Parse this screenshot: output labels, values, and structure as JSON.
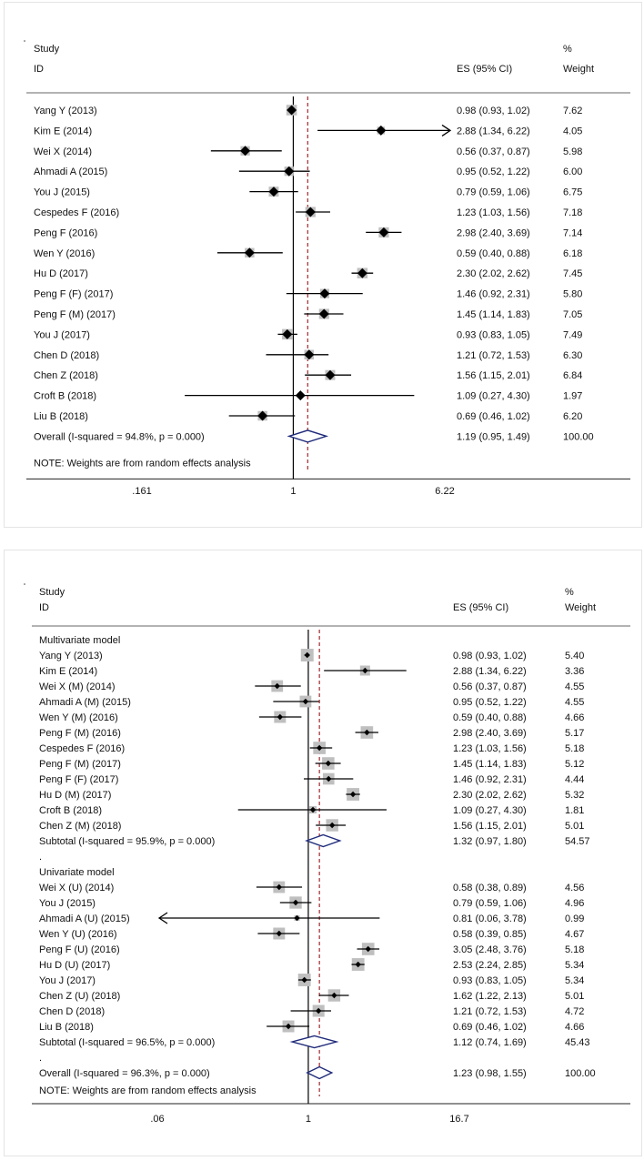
{
  "chart_data": [
    {
      "type": "forest",
      "header": {
        "col_study": "Study",
        "col_id": "ID",
        "col_es": "ES (95% CI)",
        "col_pct": "%",
        "col_weight": "Weight"
      },
      "tick_labels": [
        ".161",
        "1",
        "6.22"
      ],
      "xlim": [
        0.161,
        6.22
      ],
      "null_line": 1,
      "overall_line": 1.19,
      "note": "NOTE: Weights are from random effects analysis",
      "rows": [
        {
          "kind": "study",
          "label": "Yang Y (2013)",
          "es": 0.98,
          "lo": 0.93,
          "hi": 1.02,
          "ci_text": "0.98 (0.93, 1.02)",
          "weight": "7.62"
        },
        {
          "kind": "study",
          "label": "Kim E (2014)",
          "es": 2.88,
          "lo": 1.34,
          "hi": 6.22,
          "ci_text": "2.88 (1.34, 6.22)",
          "weight": "4.05",
          "arrow": "right"
        },
        {
          "kind": "study",
          "label": "Wei X (2014)",
          "es": 0.56,
          "lo": 0.37,
          "hi": 0.87,
          "ci_text": "0.56 (0.37, 0.87)",
          "weight": "5.98"
        },
        {
          "kind": "study",
          "label": "Ahmadi A (2015)",
          "es": 0.95,
          "lo": 0.52,
          "hi": 1.22,
          "ci_text": "0.95 (0.52, 1.22)",
          "weight": "6.00"
        },
        {
          "kind": "study",
          "label": "You J (2015)",
          "es": 0.79,
          "lo": 0.59,
          "hi": 1.06,
          "ci_text": "0.79 (0.59, 1.06)",
          "weight": "6.75"
        },
        {
          "kind": "study",
          "label": "Cespedes F (2016)",
          "es": 1.23,
          "lo": 1.03,
          "hi": 1.56,
          "ci_text": "1.23 (1.03, 1.56)",
          "weight": "7.18"
        },
        {
          "kind": "study",
          "label": "Peng F (2016)",
          "es": 2.98,
          "lo": 2.4,
          "hi": 3.69,
          "ci_text": "2.98 (2.40, 3.69)",
          "weight": "7.14"
        },
        {
          "kind": "study",
          "label": "Wen Y (2016)",
          "es": 0.59,
          "lo": 0.4,
          "hi": 0.88,
          "ci_text": "0.59 (0.40, 0.88)",
          "weight": "6.18"
        },
        {
          "kind": "study",
          "label": "Hu D (2017)",
          "es": 2.3,
          "lo": 2.02,
          "hi": 2.62,
          "ci_text": "2.30 (2.02, 2.62)",
          "weight": "7.45"
        },
        {
          "kind": "study",
          "label": "Peng F (F) (2017)",
          "es": 1.46,
          "lo": 0.92,
          "hi": 2.31,
          "ci_text": "1.46 (0.92, 2.31)",
          "weight": "5.80"
        },
        {
          "kind": "study",
          "label": "Peng F (M) (2017)",
          "es": 1.45,
          "lo": 1.14,
          "hi": 1.83,
          "ci_text": "1.45 (1.14, 1.83)",
          "weight": "7.05"
        },
        {
          "kind": "study",
          "label": "You J (2017)",
          "es": 0.93,
          "lo": 0.83,
          "hi": 1.05,
          "ci_text": "0.93 (0.83, 1.05)",
          "weight": "7.49"
        },
        {
          "kind": "study",
          "label": "Chen D (2018)",
          "es": 1.21,
          "lo": 0.72,
          "hi": 1.53,
          "ci_text": "1.21 (0.72, 1.53)",
          "weight": "6.30"
        },
        {
          "kind": "study",
          "label": "Chen Z (2018)",
          "es": 1.56,
          "lo": 1.15,
          "hi": 2.01,
          "ci_text": "1.56 (1.15, 2.01)",
          "weight": "6.84"
        },
        {
          "kind": "study",
          "label": "Croft B (2018)",
          "es": 1.09,
          "lo": 0.27,
          "hi": 4.3,
          "ci_text": "1.09 (0.27, 4.30)",
          "weight": "1.97"
        },
        {
          "kind": "study",
          "label": "Liu B (2018)",
          "es": 0.69,
          "lo": 0.46,
          "hi": 1.02,
          "ci_text": "0.69 (0.46, 1.02)",
          "weight": "6.20"
        },
        {
          "kind": "overall",
          "label": "Overall  (I-squared = 94.8%, p = 0.000)",
          "es": 1.19,
          "lo": 0.95,
          "hi": 1.49,
          "ci_text": "1.19 (0.95, 1.49)",
          "weight": "100.00"
        }
      ]
    },
    {
      "type": "forest",
      "header": {
        "col_study": "Study",
        "col_id": "ID",
        "col_es": "ES (95% CI)",
        "col_pct": "%",
        "col_weight": "Weight"
      },
      "tick_labels": [
        ".06",
        "1",
        "16.7"
      ],
      "xlim": [
        0.06,
        16.7
      ],
      "null_line": 1,
      "overall_line": 1.23,
      "note": "NOTE: Weights are from random effects analysis",
      "rows": [
        {
          "kind": "group",
          "label": "Multivariate model"
        },
        {
          "kind": "study",
          "label": "Yang Y (2013)",
          "es": 0.98,
          "lo": 0.93,
          "hi": 1.02,
          "ci_text": "0.98 (0.93, 1.02)",
          "weight": "5.40"
        },
        {
          "kind": "study",
          "label": "Kim E (2014)",
          "es": 2.88,
          "lo": 1.34,
          "hi": 6.22,
          "ci_text": "2.88 (1.34, 6.22)",
          "weight": "3.36"
        },
        {
          "kind": "study",
          "label": "Wei X (M) (2014)",
          "es": 0.56,
          "lo": 0.37,
          "hi": 0.87,
          "ci_text": "0.56 (0.37, 0.87)",
          "weight": "4.55"
        },
        {
          "kind": "study",
          "label": "Ahmadi A (M) (2015)",
          "es": 0.95,
          "lo": 0.52,
          "hi": 1.22,
          "ci_text": "0.95 (0.52, 1.22)",
          "weight": "4.55"
        },
        {
          "kind": "study",
          "label": "Wen Y (M) (2016)",
          "es": 0.59,
          "lo": 0.4,
          "hi": 0.88,
          "ci_text": "0.59 (0.40, 0.88)",
          "weight": "4.66"
        },
        {
          "kind": "study",
          "label": "Peng F (M) (2016)",
          "es": 2.98,
          "lo": 2.4,
          "hi": 3.69,
          "ci_text": "2.98 (2.40, 3.69)",
          "weight": "5.17"
        },
        {
          "kind": "study",
          "label": "Cespedes F (2016)",
          "es": 1.23,
          "lo": 1.03,
          "hi": 1.56,
          "ci_text": "1.23 (1.03, 1.56)",
          "weight": "5.18"
        },
        {
          "kind": "study",
          "label": "Peng F (M) (2017)",
          "es": 1.45,
          "lo": 1.14,
          "hi": 1.83,
          "ci_text": "1.45 (1.14, 1.83)",
          "weight": "5.12"
        },
        {
          "kind": "study",
          "label": "Peng F (F) (2017)",
          "es": 1.46,
          "lo": 0.92,
          "hi": 2.31,
          "ci_text": "1.46 (0.92, 2.31)",
          "weight": "4.44"
        },
        {
          "kind": "study",
          "label": "Hu D (M) (2017)",
          "es": 2.3,
          "lo": 2.02,
          "hi": 2.62,
          "ci_text": "2.30 (2.02, 2.62)",
          "weight": "5.32"
        },
        {
          "kind": "study",
          "label": "Croft B (2018)",
          "es": 1.09,
          "lo": 0.27,
          "hi": 4.3,
          "ci_text": "1.09 (0.27, 4.30)",
          "weight": "1.81"
        },
        {
          "kind": "study",
          "label": "Chen Z (M) (2018)",
          "es": 1.56,
          "lo": 1.15,
          "hi": 2.01,
          "ci_text": "1.56 (1.15, 2.01)",
          "weight": "5.01"
        },
        {
          "kind": "subtotal",
          "label": "Subtotal  (I-squared = 95.9%, p = 0.000)",
          "es": 1.32,
          "lo": 0.97,
          "hi": 1.8,
          "ci_text": "1.32 (0.97, 1.80)",
          "weight": "54.57"
        },
        {
          "kind": "dot",
          "label": "."
        },
        {
          "kind": "group",
          "label": "Univariate model"
        },
        {
          "kind": "study",
          "label": "Wei X (U) (2014)",
          "es": 0.58,
          "lo": 0.38,
          "hi": 0.89,
          "ci_text": "0.58 (0.38, 0.89)",
          "weight": "4.56"
        },
        {
          "kind": "study",
          "label": "You J (2015)",
          "es": 0.79,
          "lo": 0.59,
          "hi": 1.06,
          "ci_text": "0.79 (0.59, 1.06)",
          "weight": "4.96"
        },
        {
          "kind": "study",
          "label": "Ahmadi A (U) (2015)",
          "es": 0.81,
          "lo": 0.06,
          "hi": 3.78,
          "ci_text": "0.81 (0.06, 3.78)",
          "weight": "0.99",
          "arrow": "left"
        },
        {
          "kind": "study",
          "label": "Wen Y (U) (2016)",
          "es": 0.58,
          "lo": 0.39,
          "hi": 0.85,
          "ci_text": "0.58 (0.39, 0.85)",
          "weight": "4.67"
        },
        {
          "kind": "study",
          "label": "Peng F (U) (2016)",
          "es": 3.05,
          "lo": 2.48,
          "hi": 3.76,
          "ci_text": "3.05 (2.48, 3.76)",
          "weight": "5.18"
        },
        {
          "kind": "study",
          "label": "Hu D (U) (2017)",
          "es": 2.53,
          "lo": 2.24,
          "hi": 2.85,
          "ci_text": "2.53 (2.24, 2.85)",
          "weight": "5.34"
        },
        {
          "kind": "study",
          "label": "You J (2017)",
          "es": 0.93,
          "lo": 0.83,
          "hi": 1.05,
          "ci_text": "0.93 (0.83, 1.05)",
          "weight": "5.34"
        },
        {
          "kind": "study",
          "label": "Chen Z (U) (2018)",
          "es": 1.62,
          "lo": 1.22,
          "hi": 2.13,
          "ci_text": "1.62 (1.22, 2.13)",
          "weight": "5.01"
        },
        {
          "kind": "study",
          "label": "Chen D (2018)",
          "es": 1.21,
          "lo": 0.72,
          "hi": 1.53,
          "ci_text": "1.21 (0.72, 1.53)",
          "weight": "4.72"
        },
        {
          "kind": "study",
          "label": "Liu B (2018)",
          "es": 0.69,
          "lo": 0.46,
          "hi": 1.02,
          "ci_text": "0.69 (0.46, 1.02)",
          "weight": "4.66"
        },
        {
          "kind": "subtotal",
          "label": "Subtotal  (I-squared = 96.5%, p = 0.000)",
          "es": 1.12,
          "lo": 0.74,
          "hi": 1.69,
          "ci_text": "1.12 (0.74, 1.69)",
          "weight": "45.43"
        },
        {
          "kind": "dot",
          "label": "."
        },
        {
          "kind": "overall",
          "label": "Overall  (I-squared = 96.3%, p = 0.000)",
          "es": 1.23,
          "lo": 0.98,
          "hi": 1.55,
          "ci_text": "1.23 (0.98, 1.55)",
          "weight": "100.00"
        }
      ]
    }
  ]
}
